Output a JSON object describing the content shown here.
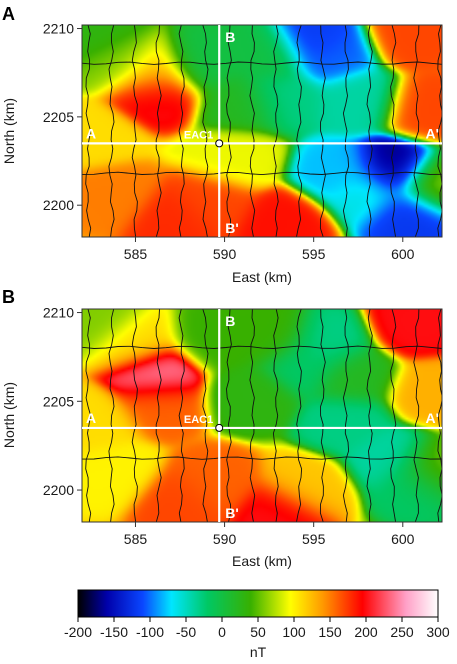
{
  "chart_data": [
    {
      "type": "heatmap",
      "panel_label": "A",
      "xlabel": "East (km)",
      "ylabel": "North (km)",
      "xlim": [
        582,
        602.2
      ],
      "ylim": [
        2198.2,
        2210.2
      ],
      "x_ticks": [
        "585",
        "590",
        "595",
        "600"
      ],
      "y_ticks": [
        "2210",
        "2205",
        "2200"
      ],
      "profile_labels": {
        "a": "A",
        "a_prime": "A'",
        "b": "B",
        "b_prime": "B'",
        "well": "EAC1"
      },
      "profile_ns_x": 589.7,
      "profile_ew_y": 2203.5,
      "well": {
        "x": 589.7,
        "y": 2203.5
      },
      "anomalies": [
        {
          "x": 583,
          "y": 2209.5,
          "value": 30
        },
        {
          "x": 584.2,
          "y": 2208.2,
          "value": 60
        },
        {
          "x": 586,
          "y": 2207.5,
          "value": 120
        },
        {
          "x": 586.2,
          "y": 2206.4,
          "value": 200
        },
        {
          "x": 582.6,
          "y": 2203.8,
          "value": 110
        },
        {
          "x": 583.7,
          "y": 2200.6,
          "value": 150
        },
        {
          "x": 587.2,
          "y": 2199.2,
          "value": 180
        },
        {
          "x": 589.3,
          "y": 2200.2,
          "value": 170
        },
        {
          "x": 593.3,
          "y": 2199,
          "value": 190
        },
        {
          "x": 590.6,
          "y": 2202.6,
          "value": 90
        },
        {
          "x": 593.2,
          "y": 2206.2,
          "value": -30
        },
        {
          "x": 596,
          "y": 2208.5,
          "value": -100
        },
        {
          "x": 595.1,
          "y": 2209.1,
          "value": -120
        },
        {
          "x": 592.6,
          "y": 2208.3,
          "value": 0
        },
        {
          "x": 597.5,
          "y": 2206,
          "value": -40
        },
        {
          "x": 596.5,
          "y": 2201.8,
          "value": -80
        },
        {
          "x": 599.5,
          "y": 2202,
          "value": -170
        },
        {
          "x": 600.3,
          "y": 2199.6,
          "value": -120
        },
        {
          "x": 598,
          "y": 2200.8,
          "value": -60
        },
        {
          "x": 600.6,
          "y": 2209.6,
          "value": 170
        },
        {
          "x": 601.4,
          "y": 2205.5,
          "value": 170
        },
        {
          "x": 601.8,
          "y": 2201.2,
          "value": 60
        },
        {
          "x": 591,
          "y": 2205.8,
          "value": 20
        },
        {
          "x": 588.7,
          "y": 2208,
          "value": 0
        }
      ]
    },
    {
      "type": "heatmap",
      "panel_label": "B",
      "xlabel": "East (km)",
      "ylabel": "North (km)",
      "xlim": [
        582,
        602.2
      ],
      "ylim": [
        2198.2,
        2210.2
      ],
      "x_ticks": [
        "585",
        "590",
        "595",
        "600"
      ],
      "y_ticks": [
        "2210",
        "2205",
        "2200"
      ],
      "profile_labels": {
        "a": "A",
        "a_prime": "A'",
        "b": "B",
        "b_prime": "B'",
        "well": "EAC1"
      },
      "profile_ns_x": 589.7,
      "profile_ew_y": 2203.5,
      "well": {
        "x": 589.7,
        "y": 2203.5
      },
      "anomalies": [
        {
          "x": 583,
          "y": 2209.5,
          "value": 60
        },
        {
          "x": 585,
          "y": 2208.3,
          "value": 110
        },
        {
          "x": 586.2,
          "y": 2206.5,
          "value": 240
        },
        {
          "x": 586.4,
          "y": 2204.9,
          "value": 160
        },
        {
          "x": 582.7,
          "y": 2203.7,
          "value": 110
        },
        {
          "x": 583.8,
          "y": 2201,
          "value": 100
        },
        {
          "x": 587.6,
          "y": 2199.4,
          "value": 170
        },
        {
          "x": 589.4,
          "y": 2200.4,
          "value": 160
        },
        {
          "x": 593.2,
          "y": 2198.8,
          "value": 200
        },
        {
          "x": 594.5,
          "y": 2200.1,
          "value": 120
        },
        {
          "x": 591.5,
          "y": 2205.3,
          "value": 30
        },
        {
          "x": 595.7,
          "y": 2208.2,
          "value": -30
        },
        {
          "x": 594.4,
          "y": 2207.1,
          "value": -20
        },
        {
          "x": 592.6,
          "y": 2208.6,
          "value": 40
        },
        {
          "x": 596.9,
          "y": 2203.8,
          "value": -30
        },
        {
          "x": 599.4,
          "y": 2201.8,
          "value": -40
        },
        {
          "x": 600.8,
          "y": 2200.4,
          "value": -20
        },
        {
          "x": 600.8,
          "y": 2209.3,
          "value": 200
        },
        {
          "x": 601.6,
          "y": 2205.5,
          "value": 130
        },
        {
          "x": 601.8,
          "y": 2201.2,
          "value": 60
        },
        {
          "x": 589.5,
          "y": 2208.5,
          "value": 40
        },
        {
          "x": 597.3,
          "y": 2206.4,
          "value": 20
        }
      ]
    },
    {
      "type": "colorbar",
      "label": "nT",
      "range": [
        -200,
        300
      ],
      "ticks": [
        "-200",
        "-150",
        "-100",
        "-50",
        "0",
        "50",
        "100",
        "150",
        "200",
        "250",
        "300"
      ],
      "stops": [
        {
          "value": -200,
          "color": "#000000"
        },
        {
          "value": -160,
          "color": "#0000aa"
        },
        {
          "value": -110,
          "color": "#0a46ff"
        },
        {
          "value": -70,
          "color": "#00e6ff"
        },
        {
          "value": -20,
          "color": "#00c864"
        },
        {
          "value": 40,
          "color": "#38b000"
        },
        {
          "value": 95,
          "color": "#ffff00"
        },
        {
          "value": 140,
          "color": "#ff9900"
        },
        {
          "value": 195,
          "color": "#ff0000"
        },
        {
          "value": 255,
          "color": "#ff9fc6"
        },
        {
          "value": 300,
          "color": "#ffffff"
        }
      ]
    }
  ]
}
